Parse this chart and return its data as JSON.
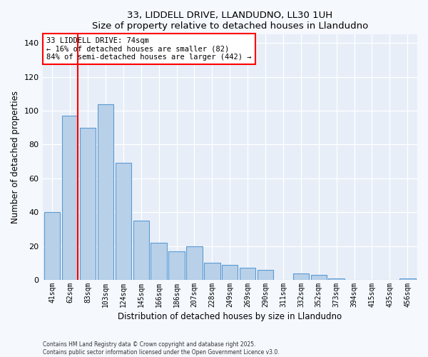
{
  "title": "33, LIDDELL DRIVE, LLANDUDNO, LL30 1UH",
  "subtitle": "Size of property relative to detached houses in Llandudno",
  "xlabel": "Distribution of detached houses by size in Llandudno",
  "ylabel": "Number of detached properties",
  "categories": [
    "41sqm",
    "62sqm",
    "83sqm",
    "103sqm",
    "124sqm",
    "145sqm",
    "166sqm",
    "186sqm",
    "207sqm",
    "228sqm",
    "249sqm",
    "269sqm",
    "290sqm",
    "311sqm",
    "332sqm",
    "352sqm",
    "373sqm",
    "394sqm",
    "415sqm",
    "435sqm",
    "456sqm"
  ],
  "values": [
    40,
    97,
    90,
    104,
    69,
    35,
    22,
    17,
    20,
    10,
    9,
    7,
    6,
    0,
    4,
    3,
    1,
    0,
    0,
    0,
    1
  ],
  "bar_color": "#b8d0e8",
  "bar_edge_color": "#5b9bd5",
  "ylim": [
    0,
    145
  ],
  "yticks": [
    0,
    20,
    40,
    60,
    80,
    100,
    120,
    140
  ],
  "annotation_title": "33 LIDDELL DRIVE: 74sqm",
  "annotation_line1": "← 16% of detached houses are smaller (82)",
  "annotation_line2": "84% of semi-detached houses are larger (442) →",
  "footer1": "Contains HM Land Registry data © Crown copyright and database right 2025.",
  "footer2": "Contains public sector information licensed under the Open Government Licence v3.0.",
  "bg_color": "#f5f8fd",
  "plot_bg_color": "#e8eef8"
}
